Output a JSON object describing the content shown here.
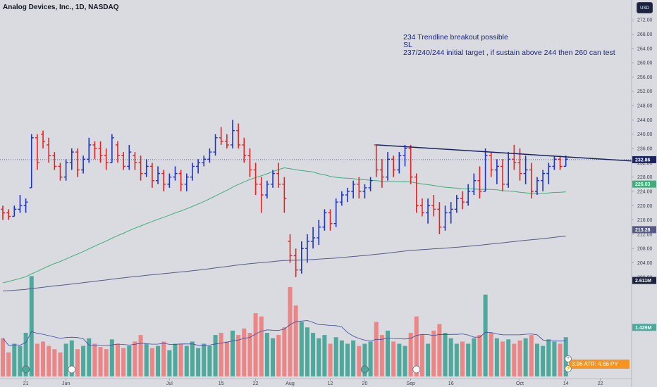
{
  "header": {
    "title": "Analog Devices, Inc., 1D, NASDAQ"
  },
  "annotation": {
    "lines": [
      "234 Trendline breakout possible",
      "SL",
      "237/240/244 initial target , if sustain above 244 then 260 can test"
    ]
  },
  "currency": "USD",
  "atr_label": "3.96  ATR: 4.66  PY",
  "colors": {
    "up": "#1e33c8",
    "down": "#ea1f1f",
    "vol_up": "#4ea89c",
    "vol_down": "#ec8585",
    "ma_short": "#3fae77",
    "ma_long": "#555b86",
    "trend": "#1b2360",
    "price_tag": "#1b2360",
    "vol_ma": "#3a4aa0"
  },
  "chart_data": {
    "type": "bar",
    "ylim": [
      198,
      274
    ],
    "yticks": [
      200,
      204,
      208,
      212,
      216,
      220,
      224,
      228,
      232,
      236,
      240,
      244,
      248,
      252,
      256,
      260,
      264,
      268,
      272
    ],
    "xtick_labels": [
      "21",
      "Jun",
      "Jul",
      "15",
      "22",
      "Aug",
      "12",
      "20",
      "Sep",
      "16",
      "Oct",
      "14",
      "22"
    ],
    "price_tags": [
      {
        "label": "232.86",
        "value": 232.86
      },
      {
        "label": "226.03",
        "value": 226.03
      },
      {
        "label": "213.28",
        "value": 213.28
      }
    ],
    "volume_tags": [
      {
        "label": "2.611M",
        "frac": 0.88
      },
      {
        "label": "1.429M",
        "frac": 0.45
      }
    ],
    "trendline": [
      {
        "i": 65,
        "v": 237.0
      },
      {
        "i": 114,
        "v": 232.5
      }
    ],
    "ohlc": [
      [
        219,
        220,
        216,
        218
      ],
      [
        218,
        219,
        216,
        217
      ],
      [
        217,
        220,
        217,
        219
      ],
      [
        219,
        223,
        218,
        220
      ],
      [
        220,
        222,
        218,
        221
      ],
      [
        225,
        240,
        225,
        239
      ],
      [
        239,
        240,
        230,
        232
      ],
      [
        240,
        241,
        236,
        238
      ],
      [
        237,
        239,
        232,
        234
      ],
      [
        234,
        235,
        230,
        231
      ],
      [
        231,
        232,
        227,
        228
      ],
      [
        228,
        233,
        227,
        232
      ],
      [
        232,
        236,
        230,
        235
      ],
      [
        235,
        236,
        228,
        230
      ],
      [
        230,
        234,
        229,
        233
      ],
      [
        233,
        239,
        232,
        237
      ],
      [
        237,
        238,
        233,
        236
      ],
      [
        236,
        238,
        232,
        234
      ],
      [
        234,
        236,
        230,
        232
      ],
      [
        232,
        240,
        232,
        239
      ],
      [
        237,
        238,
        232,
        234
      ],
      [
        234,
        235,
        230,
        231
      ],
      [
        231,
        237,
        230,
        235
      ],
      [
        234,
        235,
        230,
        232
      ],
      [
        232,
        234,
        227,
        229
      ],
      [
        229,
        233,
        228,
        231
      ],
      [
        231,
        232,
        225,
        227
      ],
      [
        227,
        231,
        226,
        229
      ],
      [
        229,
        230,
        224,
        226
      ],
      [
        226,
        229,
        225,
        228
      ],
      [
        228,
        231,
        227,
        229
      ],
      [
        229,
        230,
        224,
        226
      ],
      [
        226,
        229,
        224,
        228
      ],
      [
        228,
        232,
        227,
        231
      ],
      [
        231,
        233,
        229,
        232
      ],
      [
        232,
        234,
        231,
        233
      ],
      [
        233,
        236,
        232,
        235
      ],
      [
        235,
        240,
        234,
        239
      ],
      [
        239,
        242,
        237,
        238
      ],
      [
        238,
        240,
        236,
        237
      ],
      [
        237,
        244,
        236,
        241
      ],
      [
        241,
        243,
        236,
        237
      ],
      [
        237,
        239,
        232,
        234
      ],
      [
        234,
        236,
        228,
        230
      ],
      [
        230,
        232,
        223,
        226
      ],
      [
        226,
        228,
        218,
        223
      ],
      [
        223,
        227,
        222,
        226
      ],
      [
        226,
        230,
        225,
        229
      ],
      [
        229,
        232,
        225,
        226
      ],
      [
        226,
        228,
        218,
        222
      ],
      [
        210,
        212,
        204,
        206
      ],
      [
        206,
        208,
        200,
        202
      ],
      [
        202,
        210,
        201,
        208
      ],
      [
        208,
        212,
        204,
        210
      ],
      [
        210,
        214,
        208,
        211
      ],
      [
        211,
        216,
        209,
        214
      ],
      [
        214,
        219,
        213,
        218
      ],
      [
        218,
        219,
        213,
        215
      ],
      [
        215,
        222,
        214,
        221
      ],
      [
        221,
        224,
        220,
        223
      ],
      [
        223,
        225,
        221,
        224
      ],
      [
        224,
        227,
        222,
        226
      ],
      [
        226,
        228,
        222,
        224
      ],
      [
        224,
        226,
        222,
        225
      ],
      [
        225,
        228,
        224,
        227
      ],
      [
        237,
        237,
        228,
        230
      ],
      [
        230,
        233,
        225,
        228
      ],
      [
        228,
        235,
        227,
        233
      ],
      [
        233,
        234,
        228,
        230
      ],
      [
        230,
        235,
        229,
        234
      ],
      [
        234,
        237,
        231,
        236
      ],
      [
        236,
        237,
        226,
        228
      ],
      [
        228,
        229,
        218,
        220
      ],
      [
        220,
        222,
        217,
        218
      ],
      [
        218,
        222,
        215,
        220
      ],
      [
        220,
        223,
        217,
        219
      ],
      [
        219,
        221,
        212,
        214
      ],
      [
        214,
        220,
        213,
        218
      ],
      [
        218,
        221,
        215,
        219
      ],
      [
        219,
        223,
        218,
        222
      ],
      [
        222,
        224,
        219,
        221
      ],
      [
        221,
        226,
        220,
        224
      ],
      [
        224,
        229,
        223,
        227
      ],
      [
        227,
        231,
        222,
        224
      ],
      [
        224,
        236,
        224,
        234
      ],
      [
        234,
        235,
        228,
        230
      ],
      [
        230,
        233,
        226,
        231
      ],
      [
        231,
        233,
        224,
        226
      ],
      [
        226,
        235,
        225,
        233
      ],
      [
        233,
        237,
        230,
        232
      ],
      [
        232,
        236,
        227,
        229
      ],
      [
        229,
        234,
        226,
        230
      ],
      [
        230,
        232,
        222,
        224
      ],
      [
        224,
        228,
        223,
        227
      ],
      [
        227,
        230,
        224,
        229
      ],
      [
        229,
        232,
        226,
        231
      ],
      [
        231,
        234,
        230,
        233
      ],
      [
        233,
        234,
        230,
        231
      ],
      [
        231,
        234,
        231,
        233
      ]
    ],
    "volume": [
      0.35,
      0.22,
      0.3,
      0.28,
      0.4,
      0.92,
      0.3,
      0.32,
      0.28,
      0.25,
      0.22,
      0.3,
      0.33,
      0.25,
      0.28,
      0.35,
      0.3,
      0.27,
      0.25,
      0.34,
      0.3,
      0.26,
      0.28,
      0.32,
      0.38,
      0.3,
      0.26,
      0.28,
      0.32,
      0.24,
      0.3,
      0.3,
      0.28,
      0.32,
      0.26,
      0.3,
      0.28,
      0.38,
      0.4,
      0.32,
      0.42,
      0.38,
      0.44,
      0.4,
      0.58,
      0.55,
      0.4,
      0.35,
      0.38,
      0.45,
      0.82,
      0.65,
      0.5,
      0.45,
      0.4,
      0.35,
      0.38,
      0.3,
      0.36,
      0.33,
      0.3,
      0.33,
      0.28,
      0.3,
      0.32,
      0.5,
      0.38,
      0.42,
      0.32,
      0.3,
      0.28,
      0.4,
      0.55,
      0.38,
      0.3,
      0.42,
      0.48,
      0.4,
      0.35,
      0.3,
      0.32,
      0.3,
      0.35,
      0.38,
      0.75,
      0.4,
      0.35,
      0.32,
      0.34,
      0.3,
      0.33,
      0.35,
      0.38,
      0.3,
      0.28,
      0.34,
      0.32,
      0.3,
      0.36
    ]
  }
}
